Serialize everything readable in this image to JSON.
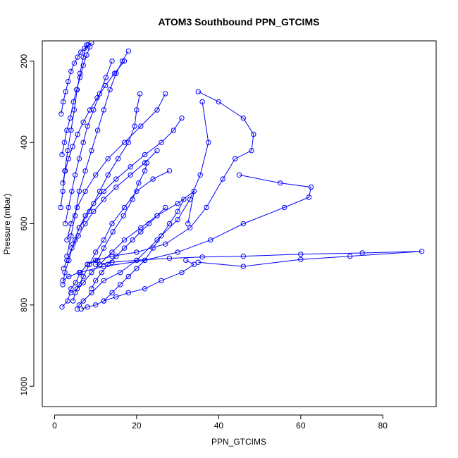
{
  "chart_data": {
    "type": "line",
    "title": "ATOM3 Southbound PPN_GTCIMS",
    "xlabel": "PPN_GTCIMS",
    "ylabel": "Pressure (mbar)",
    "xlim": [
      -3,
      93
    ],
    "ylim": [
      1050,
      150
    ],
    "y_reversed": true,
    "x_ticks": [
      0,
      20,
      40,
      60,
      80
    ],
    "y_ticks": [
      200,
      400,
      600,
      800,
      1000
    ],
    "grid": false,
    "marker": "open-circle",
    "color": "#0000ff",
    "series": [
      {
        "x": [
          1.8,
          3.2,
          4.0,
          5.1,
          6.3,
          8.0,
          10.5,
          12.0,
          14.2,
          16.8,
          19.0,
          20.5,
          22.0,
          22.5
        ],
        "y": [
          805,
          790,
          760,
          745,
          720,
          700,
          690,
          660,
          620,
          580,
          540,
          500,
          470,
          450
        ]
      },
      {
        "x": [
          2.0,
          2.5,
          3.5,
          4.5,
          6.0,
          8.5,
          11.0,
          13.0,
          15.5,
          18.0,
          19.5,
          20.0,
          20.8
        ],
        "y": [
          750,
          720,
          690,
          650,
          610,
          570,
          520,
          480,
          440,
          400,
          360,
          320,
          280
        ]
      },
      {
        "x": [
          5.5,
          6.0,
          7.0,
          9.0,
          12.0,
          16.0,
          20.0,
          25.0,
          30.0,
          33.0,
          35.5,
          37.5,
          36.0
        ],
        "y": [
          810,
          800,
          790,
          770,
          740,
          720,
          690,
          640,
          590,
          540,
          480,
          400,
          300
        ]
      },
      {
        "x": [
          3.0,
          4.0,
          5.0,
          6.0,
          7.5,
          9.0,
          10.5,
          12.0,
          13.5,
          15.0,
          16.5,
          18.0
        ],
        "y": [
          680,
          630,
          580,
          520,
          470,
          420,
          370,
          320,
          270,
          230,
          200,
          175
        ]
      },
      {
        "x": [
          8.0,
          10.0,
          14.0,
          20.0,
          27.0,
          33.0,
          37.0,
          41.0,
          44.0,
          48.0,
          48.5,
          46.0,
          40.0,
          35.0
        ],
        "y": [
          700,
          690,
          680,
          670,
          650,
          610,
          560,
          490,
          440,
          420,
          380,
          340,
          300,
          275
        ]
      },
      {
        "x": [
          2.0,
          3.5,
          6.0,
          12.0,
          22.0,
          30.0,
          38.0,
          46.0,
          56.0,
          62.0,
          62.5,
          55.0,
          45.0
        ],
        "y": [
          740,
          730,
          720,
          705,
          690,
          670,
          640,
          600,
          560,
          535,
          510,
          500,
          480
        ]
      },
      {
        "x": [
          10.0,
          14.0,
          20.0,
          28.0,
          36.0,
          46.0,
          60.0,
          75.0,
          89.5,
          72.0,
          60.0,
          46.0,
          35.0
        ],
        "y": [
          700,
          695,
          690,
          685,
          682,
          680,
          675,
          672,
          668,
          680,
          688,
          705,
          695
        ]
      },
      {
        "x": [
          4.0,
          5.5,
          7.0,
          9.0,
          11.0,
          14.0,
          17.0,
          21.0,
          25.0,
          30.0,
          34.0,
          32.5
        ],
        "y": [
          770,
          760,
          745,
          720,
          700,
          670,
          640,
          610,
          580,
          550,
          520,
          600
        ]
      },
      {
        "x": [
          1.5,
          2.0,
          2.5,
          3.2,
          4.0,
          4.8,
          5.5,
          6.2,
          7.0,
          7.8
        ],
        "y": [
          560,
          520,
          470,
          420,
          370,
          320,
          270,
          230,
          190,
          160
        ]
      },
      {
        "x": [
          6.5,
          8.0,
          10.0,
          12.0,
          15.0,
          18.0,
          22.0,
          26.0,
          31.0,
          34.0,
          32.0
        ],
        "y": [
          810,
          805,
          800,
          790,
          780,
          770,
          760,
          740,
          720,
          700,
          690
        ]
      },
      {
        "x": [
          3.0,
          4.0,
          5.5,
          7.5,
          10.0,
          13.0,
          17.0,
          21.0,
          25.0,
          27.0
        ],
        "y": [
          640,
          600,
          560,
          520,
          480,
          440,
          400,
          360,
          320,
          280
        ]
      },
      {
        "x": [
          2.2,
          3.0,
          4.2,
          5.8,
          7.5,
          9.5,
          12.0,
          15.0,
          18.5,
          22.0,
          25.0
        ],
        "y": [
          710,
          690,
          660,
          630,
          600,
          570,
          540,
          510,
          480,
          450,
          420
        ]
      },
      {
        "x": [
          1.8,
          2.4,
          3.0,
          3.8,
          4.6,
          5.4,
          6.2,
          7.0,
          7.8,
          8.6
        ],
        "y": [
          430,
          400,
          370,
          340,
          300,
          270,
          240,
          210,
          185,
          165
        ]
      },
      {
        "x": [
          12.0,
          14.0,
          16.0,
          18.0,
          20.0,
          22.0,
          24.0,
          26.0,
          28.0,
          30.0,
          31.5
        ],
        "y": [
          790,
          770,
          750,
          730,
          710,
          690,
          660,
          630,
          600,
          570,
          540
        ]
      },
      {
        "x": [
          4.5,
          5.0,
          6.0,
          7.0,
          8.5,
          10.0,
          12.0,
          14.0,
          17.0,
          20.0,
          24.0,
          28.0
        ],
        "y": [
          790,
          770,
          750,
          730,
          700,
          670,
          640,
          600,
          560,
          520,
          490,
          470
        ]
      },
      {
        "x": [
          2.6,
          3.4,
          4.2,
          5.0,
          6.0,
          7.0,
          8.0,
          9.5,
          11.0,
          12.5,
          14.0
        ],
        "y": [
          600,
          560,
          520,
          480,
          440,
          400,
          360,
          320,
          280,
          240,
          200
        ]
      },
      {
        "x": [
          1.6,
          2.1,
          2.7,
          3.3,
          4.0,
          4.8,
          5.6,
          6.4,
          7.3,
          8.2,
          9.0
        ],
        "y": [
          330,
          300,
          275,
          250,
          225,
          205,
          190,
          178,
          168,
          160,
          155
        ]
      },
      {
        "x": [
          9.0,
          10.0,
          11.5,
          13.0,
          15.0,
          17.0,
          19.0,
          21.0,
          23.0,
          25.0,
          27.0
        ],
        "y": [
          760,
          740,
          720,
          700,
          680,
          660,
          640,
          620,
          600,
          580,
          560
        ]
      },
      {
        "x": [
          5.0,
          6.0,
          7.5,
          9.5,
          12.0,
          15.0,
          18.5,
          22.0,
          26.0,
          29.0,
          31.0
        ],
        "y": [
          640,
          610,
          580,
          550,
          520,
          490,
          460,
          430,
          400,
          370,
          340
        ]
      },
      {
        "x": [
          2.0,
          2.6,
          3.4,
          4.4,
          5.6,
          7.0,
          8.6,
          10.4,
          12.4,
          14.6,
          17.0
        ],
        "y": [
          500,
          470,
          440,
          410,
          380,
          350,
          320,
          290,
          260,
          230,
          200
        ]
      }
    ]
  }
}
